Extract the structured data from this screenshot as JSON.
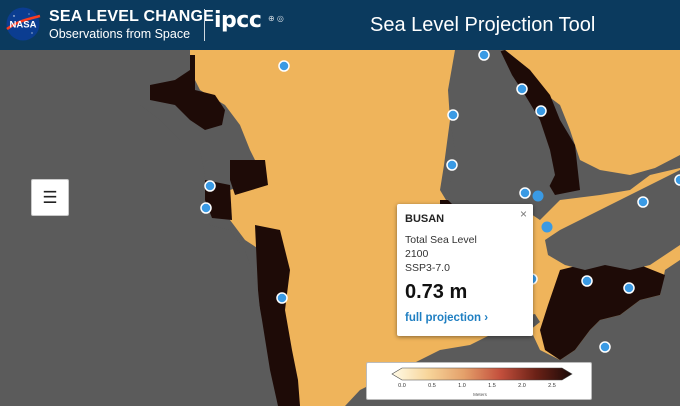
{
  "header": {
    "brand_title": "SEA LEVEL CHANGE",
    "brand_subtitle": "Observations from Space",
    "nasa_logo_text": "NASA",
    "ipcc_logo_text": "ipcc",
    "app_title": "Sea Level Projection Tool"
  },
  "map": {
    "menu_icon": "☰",
    "colors": {
      "land": "#5b5b5b",
      "ocean_high": "#f0b35a",
      "ocean_low": "#1e0b07",
      "marker": "#3a9ae4"
    }
  },
  "popup": {
    "close": "×",
    "location": "BUSAN",
    "variable": "Total Sea Level",
    "year": "2100",
    "scenario": "SSP3-7.0",
    "value": "0.73 m",
    "link": "full projection ›"
  },
  "legend": {
    "ticks": [
      "0.0",
      "0.5",
      "1.0",
      "1.5",
      "2.0",
      "2.5"
    ],
    "unit": "Meters",
    "gradient": [
      "#fffbe8",
      "#f7d59a",
      "#e4a06a",
      "#c4503d",
      "#6b2116",
      "#1a0a08"
    ]
  }
}
